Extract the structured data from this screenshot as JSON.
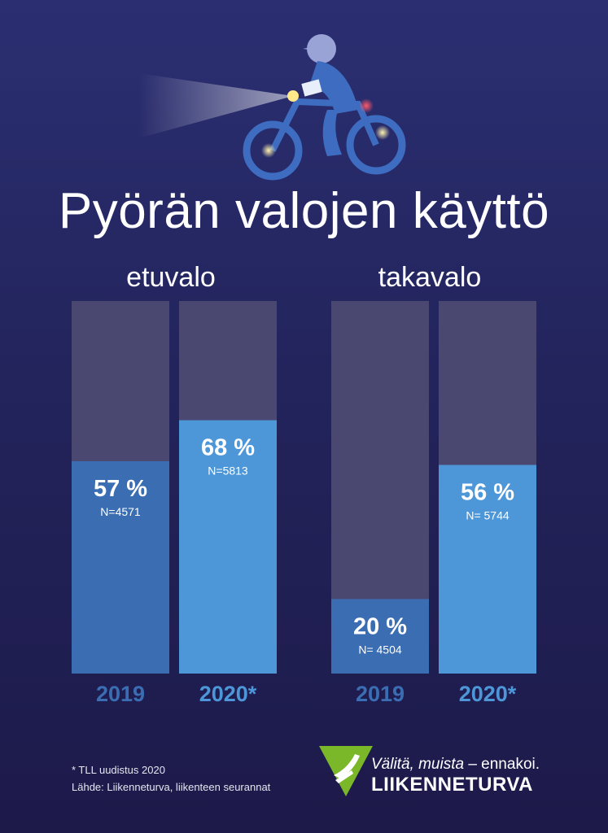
{
  "title": "Pyörän valojen käyttö",
  "colors": {
    "background_top": "#2b2f72",
    "background_bottom": "#1d1a4a",
    "bar_track": "#4a4770",
    "bar_2019": "#3a6db2",
    "bar_2020": "#4d97d8",
    "year_2019_text": "#3a6db2",
    "year_2020_text": "#4d97d8",
    "logo_green": "#7ab829"
  },
  "chart_data": [
    {
      "type": "bar",
      "title": "etuvalo",
      "categories": [
        "2019",
        "2020*"
      ],
      "values": [
        57,
        68
      ],
      "value_labels": [
        "57 %",
        "68 %"
      ],
      "n_labels": [
        "N=4571",
        "N=5813"
      ],
      "ylim": [
        0,
        100
      ]
    },
    {
      "type": "bar",
      "title": "takavalo",
      "categories": [
        "2019",
        "2020*"
      ],
      "values": [
        20,
        56
      ],
      "value_labels": [
        "20 %",
        "56 %"
      ],
      "n_labels": [
        "N= 4504",
        "N= 5744"
      ],
      "ylim": [
        0,
        100
      ]
    }
  ],
  "footnote": {
    "line1": "* TLL uudistus 2020",
    "line2": "Lähde: Liikenneturva, liikenteen seurannat"
  },
  "logo": {
    "slogan_italic": "Välitä, muista",
    "slogan_rest": " – ennakoi.",
    "brand": "LIIKENNETURVA"
  }
}
